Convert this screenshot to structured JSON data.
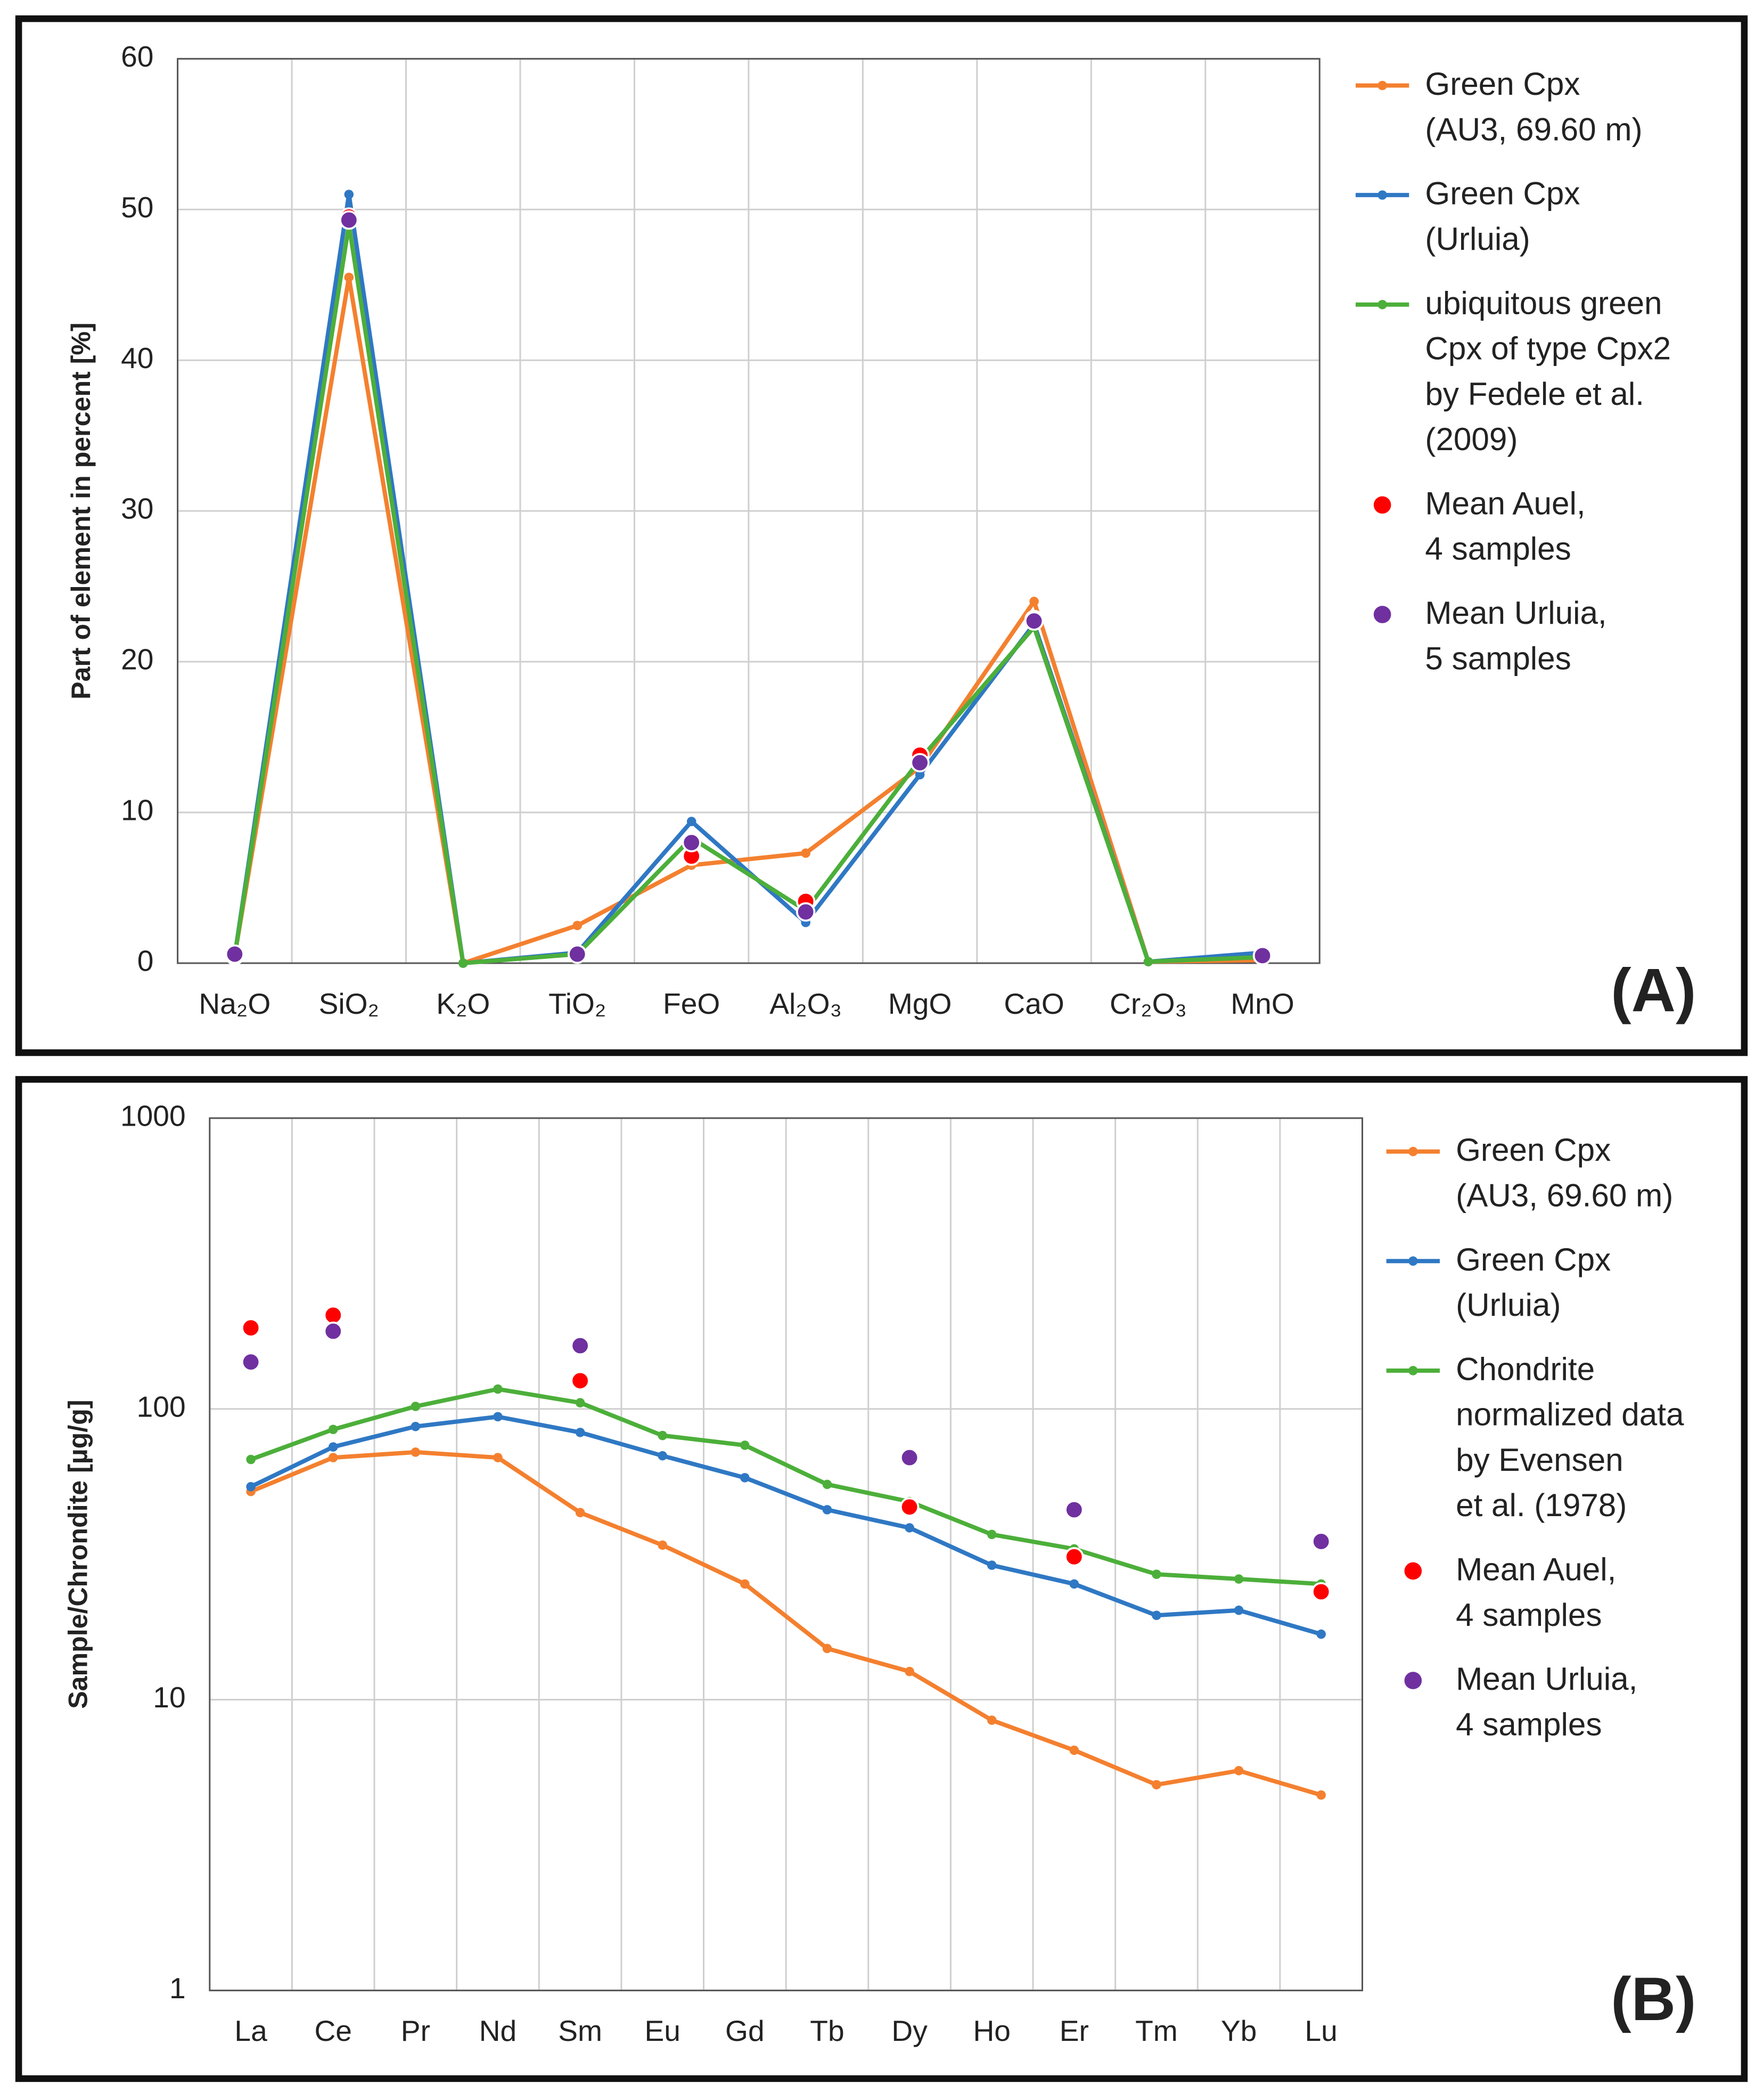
{
  "chart_data": [
    {
      "type": "line",
      "panel_label": "(A)",
      "y_label": "Part of element in percent [%]",
      "categories": [
        "Na₂O",
        "SiO₂",
        "K₂O",
        "TiO₂",
        "FeO",
        "Al₂O₃",
        "MgO",
        "CaO",
        "Cr₂O₃",
        "MnO"
      ],
      "ylim": [
        0,
        60
      ],
      "yticks": [
        0,
        10,
        20,
        30,
        40,
        50,
        60
      ],
      "grid": true,
      "log_scale": false,
      "series": [
        {
          "name": "Green Cpx\n(AU3, 69.60 m)",
          "color": "#f4802f",
          "mode": "line",
          "values": [
            0.5,
            45.5,
            0,
            2.5,
            6.5,
            7.3,
            13,
            24,
            0.1,
            0.2
          ]
        },
        {
          "name": "Green Cpx\n(Urluia)",
          "color": "#2f78c4",
          "mode": "line",
          "values": [
            0.5,
            51,
            0,
            0.7,
            9.4,
            2.7,
            12.5,
            22.5,
            0.1,
            0.7
          ]
        },
        {
          "name": "ubiquitous green\nCpx of type Cpx2\nby Fedele et al.\n(2009)",
          "color": "#4caf3a",
          "mode": "line",
          "values": [
            0.5,
            49,
            0,
            0.6,
            8.3,
            3.5,
            13.5,
            22.3,
            0.1,
            0.4
          ]
        },
        {
          "name": "Mean Auel,\n4 samples",
          "color": "#ff0000",
          "mode": "markers",
          "values": [
            0.5,
            49.5,
            null,
            0.6,
            7.1,
            4.1,
            13.8,
            22.8,
            null,
            0.5
          ]
        },
        {
          "name": "Mean Urluia,\n5 samples",
          "color": "#7030a0",
          "mode": "markers",
          "values": [
            0.6,
            49.3,
            null,
            0.6,
            8,
            3.4,
            13.3,
            22.7,
            null,
            0.5
          ]
        }
      ]
    },
    {
      "type": "line",
      "panel_label": "(B)",
      "y_label": "Sample/Chrondite [µg/g]",
      "categories": [
        "La",
        "Ce",
        "Pr",
        "Nd",
        "Sm",
        "Eu",
        "Gd",
        "Tb",
        "Dy",
        "Ho",
        "Er",
        "Tm",
        "Yb",
        "Lu"
      ],
      "ylim": [
        1,
        1000
      ],
      "yticks": [
        1,
        10,
        100,
        1000
      ],
      "grid": true,
      "log_scale": true,
      "series": [
        {
          "name": "Green Cpx\n(AU3, 69.60 m)",
          "color": "#f4802f",
          "mode": "line",
          "values": [
            52,
            68,
            71,
            68,
            44,
            34,
            25,
            15,
            12.5,
            8.5,
            6.7,
            5.1,
            5.7,
            4.7
          ]
        },
        {
          "name": "Green Cpx\n(Urluia)",
          "color": "#2f78c4",
          "mode": "line",
          "values": [
            54,
            74,
            87,
            94,
            83,
            69,
            58,
            45,
            39,
            29,
            25,
            19.5,
            20.3,
            16.8
          ]
        },
        {
          "name": "Chondrite\nnormalized data\nby Evensen\net al. (1978)",
          "color": "#4caf3a",
          "mode": "line",
          "values": [
            67,
            85,
            102,
            117,
            105,
            81,
            75,
            55,
            48,
            37,
            33,
            27,
            26,
            25
          ]
        },
        {
          "name": "Mean Auel,\n4 samples",
          "color": "#ff0000",
          "mode": "markers",
          "values": [
            190,
            210,
            null,
            null,
            125,
            null,
            null,
            null,
            46,
            null,
            31,
            null,
            null,
            23.5
          ]
        },
        {
          "name": "Mean Urluia,\n4 samples",
          "color": "#7030a0",
          "mode": "markers",
          "values": [
            145,
            185,
            null,
            null,
            165,
            null,
            null,
            null,
            68,
            null,
            45,
            null,
            null,
            35
          ]
        }
      ]
    }
  ]
}
